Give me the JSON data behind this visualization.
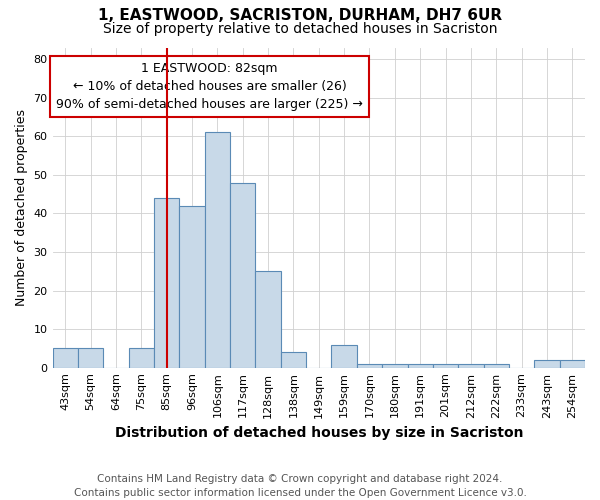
{
  "title": "1, EASTWOOD, SACRISTON, DURHAM, DH7 6UR",
  "subtitle": "Size of property relative to detached houses in Sacriston",
  "xlabel": "Distribution of detached houses by size in Sacriston",
  "ylabel": "Number of detached properties",
  "bins": [
    "43sqm",
    "54sqm",
    "64sqm",
    "75sqm",
    "85sqm",
    "96sqm",
    "106sqm",
    "117sqm",
    "128sqm",
    "138sqm",
    "149sqm",
    "159sqm",
    "170sqm",
    "180sqm",
    "191sqm",
    "201sqm",
    "212sqm",
    "222sqm",
    "233sqm",
    "243sqm",
    "254sqm"
  ],
  "values": [
    5,
    5,
    0,
    5,
    44,
    42,
    61,
    48,
    25,
    4,
    0,
    6,
    1,
    1,
    1,
    1,
    1,
    1,
    0,
    2,
    2
  ],
  "bar_color": "#c8d9e8",
  "bar_edge_color": "#5a8ab5",
  "red_line_index": 4,
  "annotation_line1": "1 EASTWOOD: 82sqm",
  "annotation_line2": "← 10% of detached houses are smaller (26)",
  "annotation_line3": "90% of semi-detached houses are larger (225) →",
  "annotation_box_color": "#ffffff",
  "annotation_box_edge": "#cc0000",
  "ylim": [
    0,
    83
  ],
  "yticks": [
    0,
    10,
    20,
    30,
    40,
    50,
    60,
    70,
    80
  ],
  "footer_line1": "Contains HM Land Registry data © Crown copyright and database right 2024.",
  "footer_line2": "Contains public sector information licensed under the Open Government Licence v3.0.",
  "background_color": "#ffffff",
  "grid_color": "#d0d0d0",
  "title_fontsize": 11,
  "subtitle_fontsize": 10,
  "xlabel_fontsize": 10,
  "ylabel_fontsize": 9,
  "tick_fontsize": 8,
  "annotation_fontsize": 9,
  "footer_fontsize": 7.5
}
